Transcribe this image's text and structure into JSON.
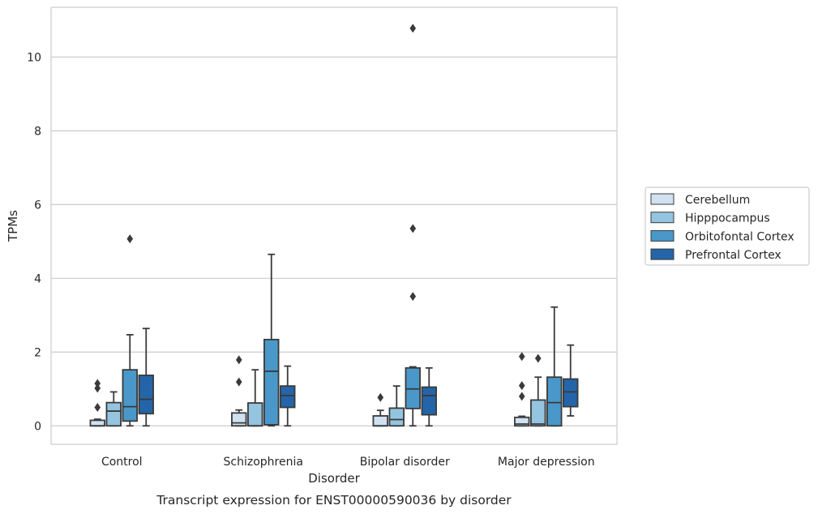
{
  "caption": "Transcript expression for ENST00000590036 by disorder",
  "chart_data": {
    "type": "box",
    "title": "",
    "xlabel": "Disorder",
    "ylabel": "TPMs",
    "ylim": [
      -0.5,
      11.35
    ],
    "yticks": [
      0,
      2,
      4,
      6,
      8,
      10
    ],
    "grid": "horizontal",
    "legend_position": "right",
    "categories": [
      "Control",
      "Schizophrenia",
      "Bipolar disorder",
      "Major depression"
    ],
    "series": [
      {
        "name": "Cerebellum",
        "color": "#d0e1f1",
        "boxes": [
          {
            "whisker_low": 0.0,
            "q1": 0.0,
            "median": 0.0,
            "q3": 0.15,
            "whisker_high": 0.18,
            "outliers": [
              0.5,
              1.02,
              1.15
            ]
          },
          {
            "whisker_low": 0.0,
            "q1": 0.0,
            "median": 0.08,
            "q3": 0.35,
            "whisker_high": 0.43,
            "outliers": [
              1.19,
              1.79
            ]
          },
          {
            "whisker_low": 0.0,
            "q1": 0.0,
            "median": 0.0,
            "q3": 0.27,
            "whisker_high": 0.42,
            "outliers": [
              0.77
            ]
          },
          {
            "whisker_low": 0.0,
            "q1": 0.0,
            "median": 0.05,
            "q3": 0.23,
            "whisker_high": 0.26,
            "outliers": [
              0.8,
              1.09,
              1.88
            ]
          }
        ]
      },
      {
        "name": "Hipppocampus",
        "color": "#94c4df",
        "boxes": [
          {
            "whisker_low": 0.0,
            "q1": 0.0,
            "median": 0.4,
            "q3": 0.63,
            "whisker_high": 0.92,
            "outliers": []
          },
          {
            "whisker_low": 0.0,
            "q1": 0.0,
            "median": 0.0,
            "q3": 0.62,
            "whisker_high": 1.52,
            "outliers": []
          },
          {
            "whisker_low": 0.0,
            "q1": 0.0,
            "median": 0.17,
            "q3": 0.48,
            "whisker_high": 1.08,
            "outliers": []
          },
          {
            "whisker_low": 0.0,
            "q1": 0.0,
            "median": 0.05,
            "q3": 0.7,
            "whisker_high": 1.32,
            "outliers": [
              1.83
            ]
          }
        ]
      },
      {
        "name": "Orbitofontal Cortex",
        "color": "#4a98c9",
        "boxes": [
          {
            "whisker_low": 0.0,
            "q1": 0.13,
            "median": 0.52,
            "q3": 1.52,
            "whisker_high": 2.47,
            "outliers": [
              5.07
            ]
          },
          {
            "whisker_low": 0.0,
            "q1": 0.03,
            "median": 1.48,
            "q3": 2.34,
            "whisker_high": 4.65,
            "outliers": []
          },
          {
            "whisker_low": 0.0,
            "q1": 0.47,
            "median": 1.0,
            "q3": 1.57,
            "whisker_high": 1.6,
            "outliers": [
              3.51,
              5.35,
              10.78
            ]
          },
          {
            "whisker_low": 0.0,
            "q1": 0.0,
            "median": 0.63,
            "q3": 1.32,
            "whisker_high": 3.22,
            "outliers": []
          }
        ]
      },
      {
        "name": "Prefrontal Cortex",
        "color": "#2465a9",
        "boxes": [
          {
            "whisker_low": 0.0,
            "q1": 0.33,
            "median": 0.72,
            "q3": 1.37,
            "whisker_high": 2.64,
            "outliers": []
          },
          {
            "whisker_low": 0.0,
            "q1": 0.5,
            "median": 0.82,
            "q3": 1.08,
            "whisker_high": 1.62,
            "outliers": []
          },
          {
            "whisker_low": 0.0,
            "q1": 0.3,
            "median": 0.82,
            "q3": 1.05,
            "whisker_high": 1.57,
            "outliers": []
          },
          {
            "whisker_low": 0.27,
            "q1": 0.52,
            "median": 0.92,
            "q3": 1.27,
            "whisker_high": 2.19,
            "outliers": []
          }
        ]
      }
    ]
  }
}
